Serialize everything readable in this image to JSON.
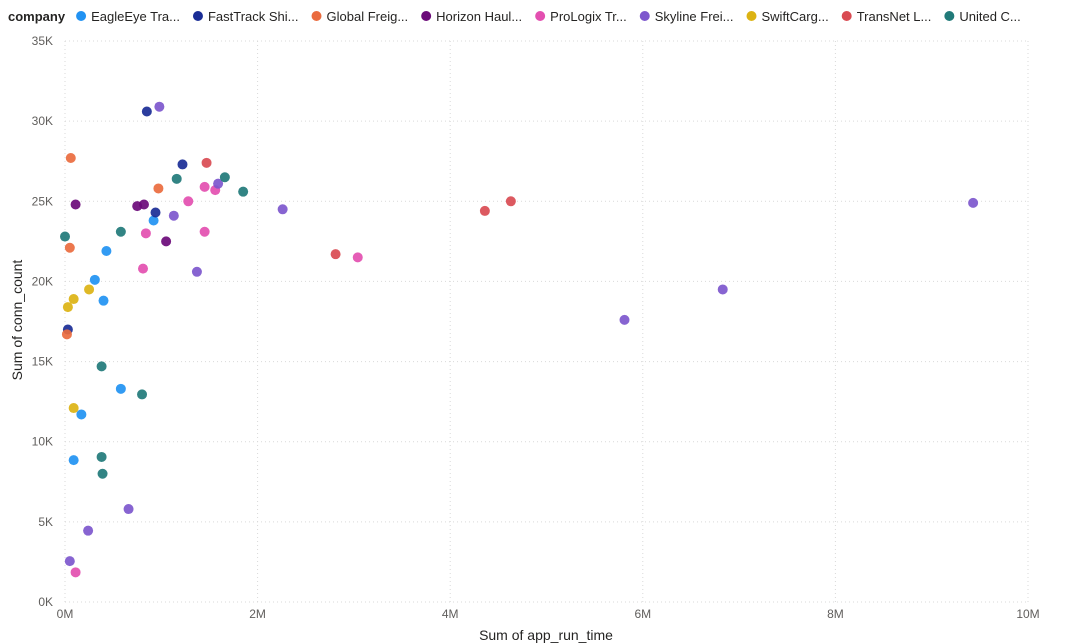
{
  "chart_data": {
    "type": "scatter",
    "legend": {
      "title": "company",
      "placement": "top-left",
      "entries": [
        {
          "name": "EagleEye Tra...",
          "color": "#2192f2"
        },
        {
          "name": "FastTrack Shi...",
          "color": "#1a2d96"
        },
        {
          "name": "Global Freig...",
          "color": "#ea6b3e"
        },
        {
          "name": "Horizon Haul...",
          "color": "#6b0a79"
        },
        {
          "name": "ProLogix Tr...",
          "color": "#e34fb0"
        },
        {
          "name": "Skyline Frei...",
          "color": "#7d57cd"
        },
        {
          "name": "SwiftCarg...",
          "color": "#dcb313"
        },
        {
          "name": "TransNet L...",
          "color": "#d94b52"
        },
        {
          "name": "United C...",
          "color": "#217a79"
        }
      ]
    },
    "xlabel": "Sum of app_run_time",
    "ylabel": "Sum of conn_count",
    "xlim": [
      0,
      10000000
    ],
    "ylim": [
      0,
      35000
    ],
    "grid": true,
    "x_ticks": [
      {
        "value": 0,
        "label": "0M"
      },
      {
        "value": 2000000,
        "label": "2M"
      },
      {
        "value": 4000000,
        "label": "4M"
      },
      {
        "value": 6000000,
        "label": "6M"
      },
      {
        "value": 8000000,
        "label": "8M"
      },
      {
        "value": 10000000,
        "label": "10M"
      }
    ],
    "y_ticks": [
      {
        "value": 0,
        "label": "0K"
      },
      {
        "value": 5000,
        "label": "5K"
      },
      {
        "value": 10000,
        "label": "10K"
      },
      {
        "value": 15000,
        "label": "15K"
      },
      {
        "value": 20000,
        "label": "20K"
      },
      {
        "value": 25000,
        "label": "25K"
      },
      {
        "value": 30000,
        "label": "30K"
      },
      {
        "value": 35000,
        "label": "35K"
      }
    ],
    "series": [
      {
        "name": "EagleEye Tra...",
        "color": "#2192f2",
        "points": [
          [
            430000,
            21900
          ],
          [
            310000,
            20100
          ],
          [
            400000,
            18800
          ],
          [
            920000,
            23800
          ],
          [
            580000,
            13300
          ],
          [
            170000,
            11700
          ],
          [
            90000,
            8850
          ]
        ]
      },
      {
        "name": "FastTrack Shi...",
        "color": "#1a2d96",
        "points": [
          [
            850000,
            30600
          ],
          [
            1220000,
            27300
          ],
          [
            940000,
            24300
          ],
          [
            30000,
            17000
          ]
        ]
      },
      {
        "name": "Global Freig...",
        "color": "#ea6b3e",
        "points": [
          [
            60000,
            27700
          ],
          [
            970000,
            25800
          ],
          [
            50000,
            22100
          ],
          [
            20000,
            16700
          ]
        ]
      },
      {
        "name": "Horizon Haul...",
        "color": "#6b0a79",
        "points": [
          [
            110000,
            24800
          ],
          [
            750000,
            24700
          ],
          [
            820000,
            24800
          ],
          [
            1050000,
            22500
          ]
        ]
      },
      {
        "name": "ProLogix Tr...",
        "color": "#e34fb0",
        "points": [
          [
            1450000,
            25900
          ],
          [
            1560000,
            25700
          ],
          [
            1280000,
            25000
          ],
          [
            840000,
            23000
          ],
          [
            1450000,
            23100
          ],
          [
            810000,
            20800
          ],
          [
            3040000,
            21500
          ],
          [
            110000,
            1850
          ]
        ]
      },
      {
        "name": "Skyline Frei...",
        "color": "#7d57cd",
        "points": [
          [
            980000,
            30900
          ],
          [
            1590000,
            26100
          ],
          [
            1130000,
            24100
          ],
          [
            2260000,
            24500
          ],
          [
            1370000,
            20600
          ],
          [
            9430000,
            24900
          ],
          [
            6830000,
            19500
          ],
          [
            5810000,
            17600
          ],
          [
            660000,
            5800
          ],
          [
            240000,
            4450
          ],
          [
            50000,
            2550
          ]
        ]
      },
      {
        "name": "SwiftCarg...",
        "color": "#dcb313",
        "points": [
          [
            250000,
            19500
          ],
          [
            90000,
            18900
          ],
          [
            30000,
            18400
          ],
          [
            90000,
            12100
          ]
        ]
      },
      {
        "name": "TransNet L...",
        "color": "#d94b52",
        "points": [
          [
            1470000,
            27400
          ],
          [
            4630000,
            25000
          ],
          [
            4360000,
            24400
          ],
          [
            2810000,
            21700
          ]
        ]
      },
      {
        "name": "United C...",
        "color": "#217a79",
        "points": [
          [
            1660000,
            26500
          ],
          [
            1160000,
            26400
          ],
          [
            1850000,
            25600
          ],
          [
            580000,
            23100
          ],
          [
            0,
            22800
          ],
          [
            380000,
            14700
          ],
          [
            800000,
            12950
          ],
          [
            380000,
            9050
          ],
          [
            390000,
            8000
          ]
        ]
      }
    ]
  }
}
